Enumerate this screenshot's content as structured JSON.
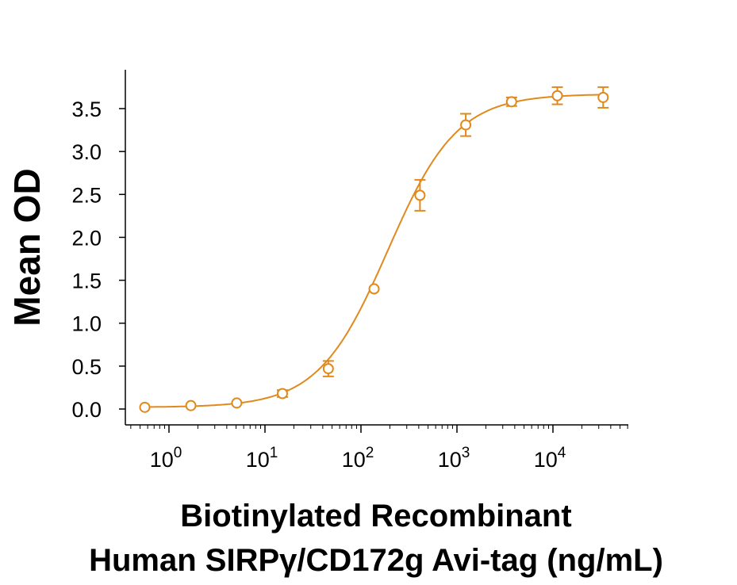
{
  "chart_data": {
    "type": "scatter",
    "ylabel": "Mean OD",
    "xlabel_line1": "Biotinylated Recombinant",
    "xlabel_line2": "Human SIRPγ/CD172g Avi-tag (ng/mL)",
    "x_scale": "log10",
    "xlim": [
      0.4,
      50000
    ],
    "ylim": [
      -0.1,
      3.95
    ],
    "x_ticks": [
      {
        "value": 1,
        "base": "10",
        "exp": "0"
      },
      {
        "value": 10,
        "base": "10",
        "exp": "1"
      },
      {
        "value": 100,
        "base": "10",
        "exp": "2"
      },
      {
        "value": 1000,
        "base": "10",
        "exp": "3"
      },
      {
        "value": 10000,
        "base": "10",
        "exp": "4"
      }
    ],
    "y_ticks": [
      {
        "value": 0.0,
        "label": "0.0"
      },
      {
        "value": 0.5,
        "label": "0.5"
      },
      {
        "value": 1.0,
        "label": "1.0"
      },
      {
        "value": 1.5,
        "label": "1.5"
      },
      {
        "value": 2.0,
        "label": "2.0"
      },
      {
        "value": 2.5,
        "label": "2.5"
      },
      {
        "value": 3.0,
        "label": "3.0"
      },
      {
        "value": 3.5,
        "label": "3.5"
      }
    ],
    "series": [
      {
        "color": "#E08A1E",
        "points": [
          {
            "x": 0.56,
            "y": 0.02,
            "err": 0.0
          },
          {
            "x": 1.69,
            "y": 0.04,
            "err": 0.0
          },
          {
            "x": 5.08,
            "y": 0.07,
            "err": 0.0
          },
          {
            "x": 15.2,
            "y": 0.18,
            "err": 0.04
          },
          {
            "x": 45.7,
            "y": 0.47,
            "err": 0.09
          },
          {
            "x": 137,
            "y": 1.4,
            "err": 0.0
          },
          {
            "x": 412,
            "y": 2.49,
            "err": 0.18
          },
          {
            "x": 1235,
            "y": 3.31,
            "err": 0.13
          },
          {
            "x": 3704,
            "y": 3.58,
            "err": 0.05
          },
          {
            "x": 11111,
            "y": 3.65,
            "err": 0.1
          },
          {
            "x": 33333,
            "y": 3.63,
            "err": 0.12
          }
        ],
        "fit": {
          "model": "4PL",
          "bottom": 0.02,
          "top": 3.67,
          "ec50": 190,
          "hill": 1.2
        }
      }
    ]
  }
}
